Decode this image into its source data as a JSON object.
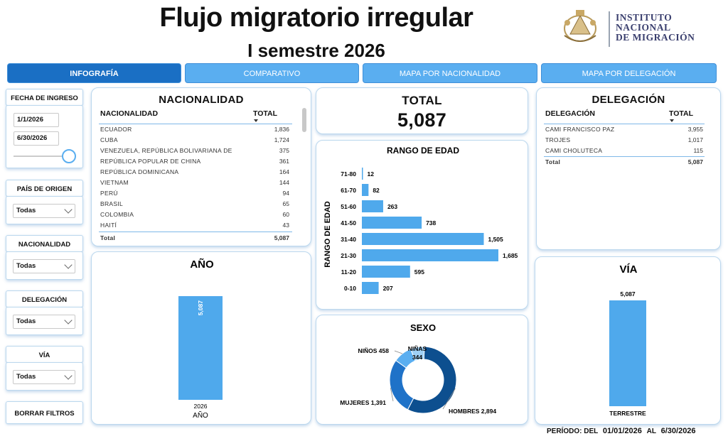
{
  "header": {
    "title": "Flujo migratorio irregular",
    "subtitle": "I semestre 2026",
    "logo_text": [
      "INSTITUTO",
      "NACIONAL",
      "DE MIGRACIÓN"
    ]
  },
  "tabs": [
    {
      "label": "INFOGRAFÍA",
      "active": true
    },
    {
      "label": "COMPARATIVO",
      "active": false
    },
    {
      "label": "MAPA POR NACIONALIDAD",
      "active": false
    },
    {
      "label": "MAPA POR DELEGACIÓN",
      "active": false
    }
  ],
  "filters": {
    "fecha": {
      "label": "FECHA DE INGRESO",
      "start": "1/1/2026",
      "end": "6/30/2026"
    },
    "pais": {
      "label": "PAÍS DE ORIGEN",
      "value": "Todas"
    },
    "nacionalidad": {
      "label": "NACIONALIDAD",
      "value": "Todas"
    },
    "delegacion": {
      "label": "DELEGACIÓN",
      "value": "Todas"
    },
    "via": {
      "label": "VÍA",
      "value": "Todas"
    },
    "clear_label": "BORRAR FILTROS"
  },
  "nacionalidad": {
    "title": "NACIONALIDAD",
    "col_name": "NACIONALIDAD",
    "col_total": "TOTAL",
    "rows": [
      {
        "name": "ECUADOR",
        "total": "1,836"
      },
      {
        "name": "CUBA",
        "total": "1,724"
      },
      {
        "name": "VENEZUELA, REPÚBLICA BOLIVARIANA DE",
        "total": "375"
      },
      {
        "name": "REPÚBLICA POPULAR DE CHINA",
        "total": "361"
      },
      {
        "name": "REPÚBLICA DOMINICANA",
        "total": "164"
      },
      {
        "name": "VIETNAM",
        "total": "144"
      },
      {
        "name": "PERÚ",
        "total": "94"
      },
      {
        "name": "BRASIL",
        "total": "65"
      },
      {
        "name": "COLOMBIA",
        "total": "60"
      },
      {
        "name": "HAITÍ",
        "total": "43"
      }
    ],
    "total_label": "Total",
    "total_value": "5,087"
  },
  "total_card": {
    "title": "TOTAL",
    "value": "5,087"
  },
  "delegacion": {
    "title": "DELEGACIÓN",
    "col_name": "DELEGACIÓN",
    "col_total": "TOTAL",
    "rows": [
      {
        "name": "CAMI FRANCISCO PAZ",
        "total": "3,955"
      },
      {
        "name": "TROJES",
        "total": "1,017"
      },
      {
        "name": "CAMI CHOLUTECA",
        "total": "115"
      }
    ],
    "total_label": "Total",
    "total_value": "5,087"
  },
  "periodo": {
    "label": "PERÍODO: DEL",
    "start": "01/01/2026",
    "mid": "AL",
    "end": "6/30/2026"
  },
  "colors": {
    "bar": "#4fa9ec",
    "donut_dark": "#0d4f8f",
    "donut_mid": "#1f72c8",
    "donut_light": "#5aaef0",
    "donut_pale": "#9fd0f5"
  },
  "chart_data": [
    {
      "type": "bar",
      "title": "RANGO DE EDAD",
      "ylabel": "RANGO DE EDAD",
      "orientation": "horizontal",
      "categories": [
        "71-80",
        "61-70",
        "51-60",
        "41-50",
        "31-40",
        "21-30",
        "11-20",
        "0-10"
      ],
      "values": [
        12,
        82,
        263,
        738,
        1505,
        1685,
        595,
        207
      ],
      "value_labels": [
        "12",
        "82",
        "263",
        "738",
        "1,505",
        "1,685",
        "595",
        "207"
      ]
    },
    {
      "type": "bar",
      "title": "AÑO",
      "xlabel": "AÑO",
      "categories": [
        "2026"
      ],
      "values": [
        5087
      ],
      "value_labels": [
        "5,087"
      ]
    },
    {
      "type": "bar",
      "title": "VÍA",
      "categories": [
        "TERRESTRE"
      ],
      "values": [
        5087
      ],
      "value_labels": [
        "5,087"
      ]
    },
    {
      "type": "pie",
      "title": "SEXO",
      "categories": [
        "HOMBRES",
        "MUJERES",
        "NIÑOS",
        "NIÑAS"
      ],
      "values": [
        2894,
        1391,
        458,
        344
      ],
      "value_labels": [
        "2,894",
        "1,391",
        "458",
        "344"
      ]
    }
  ]
}
